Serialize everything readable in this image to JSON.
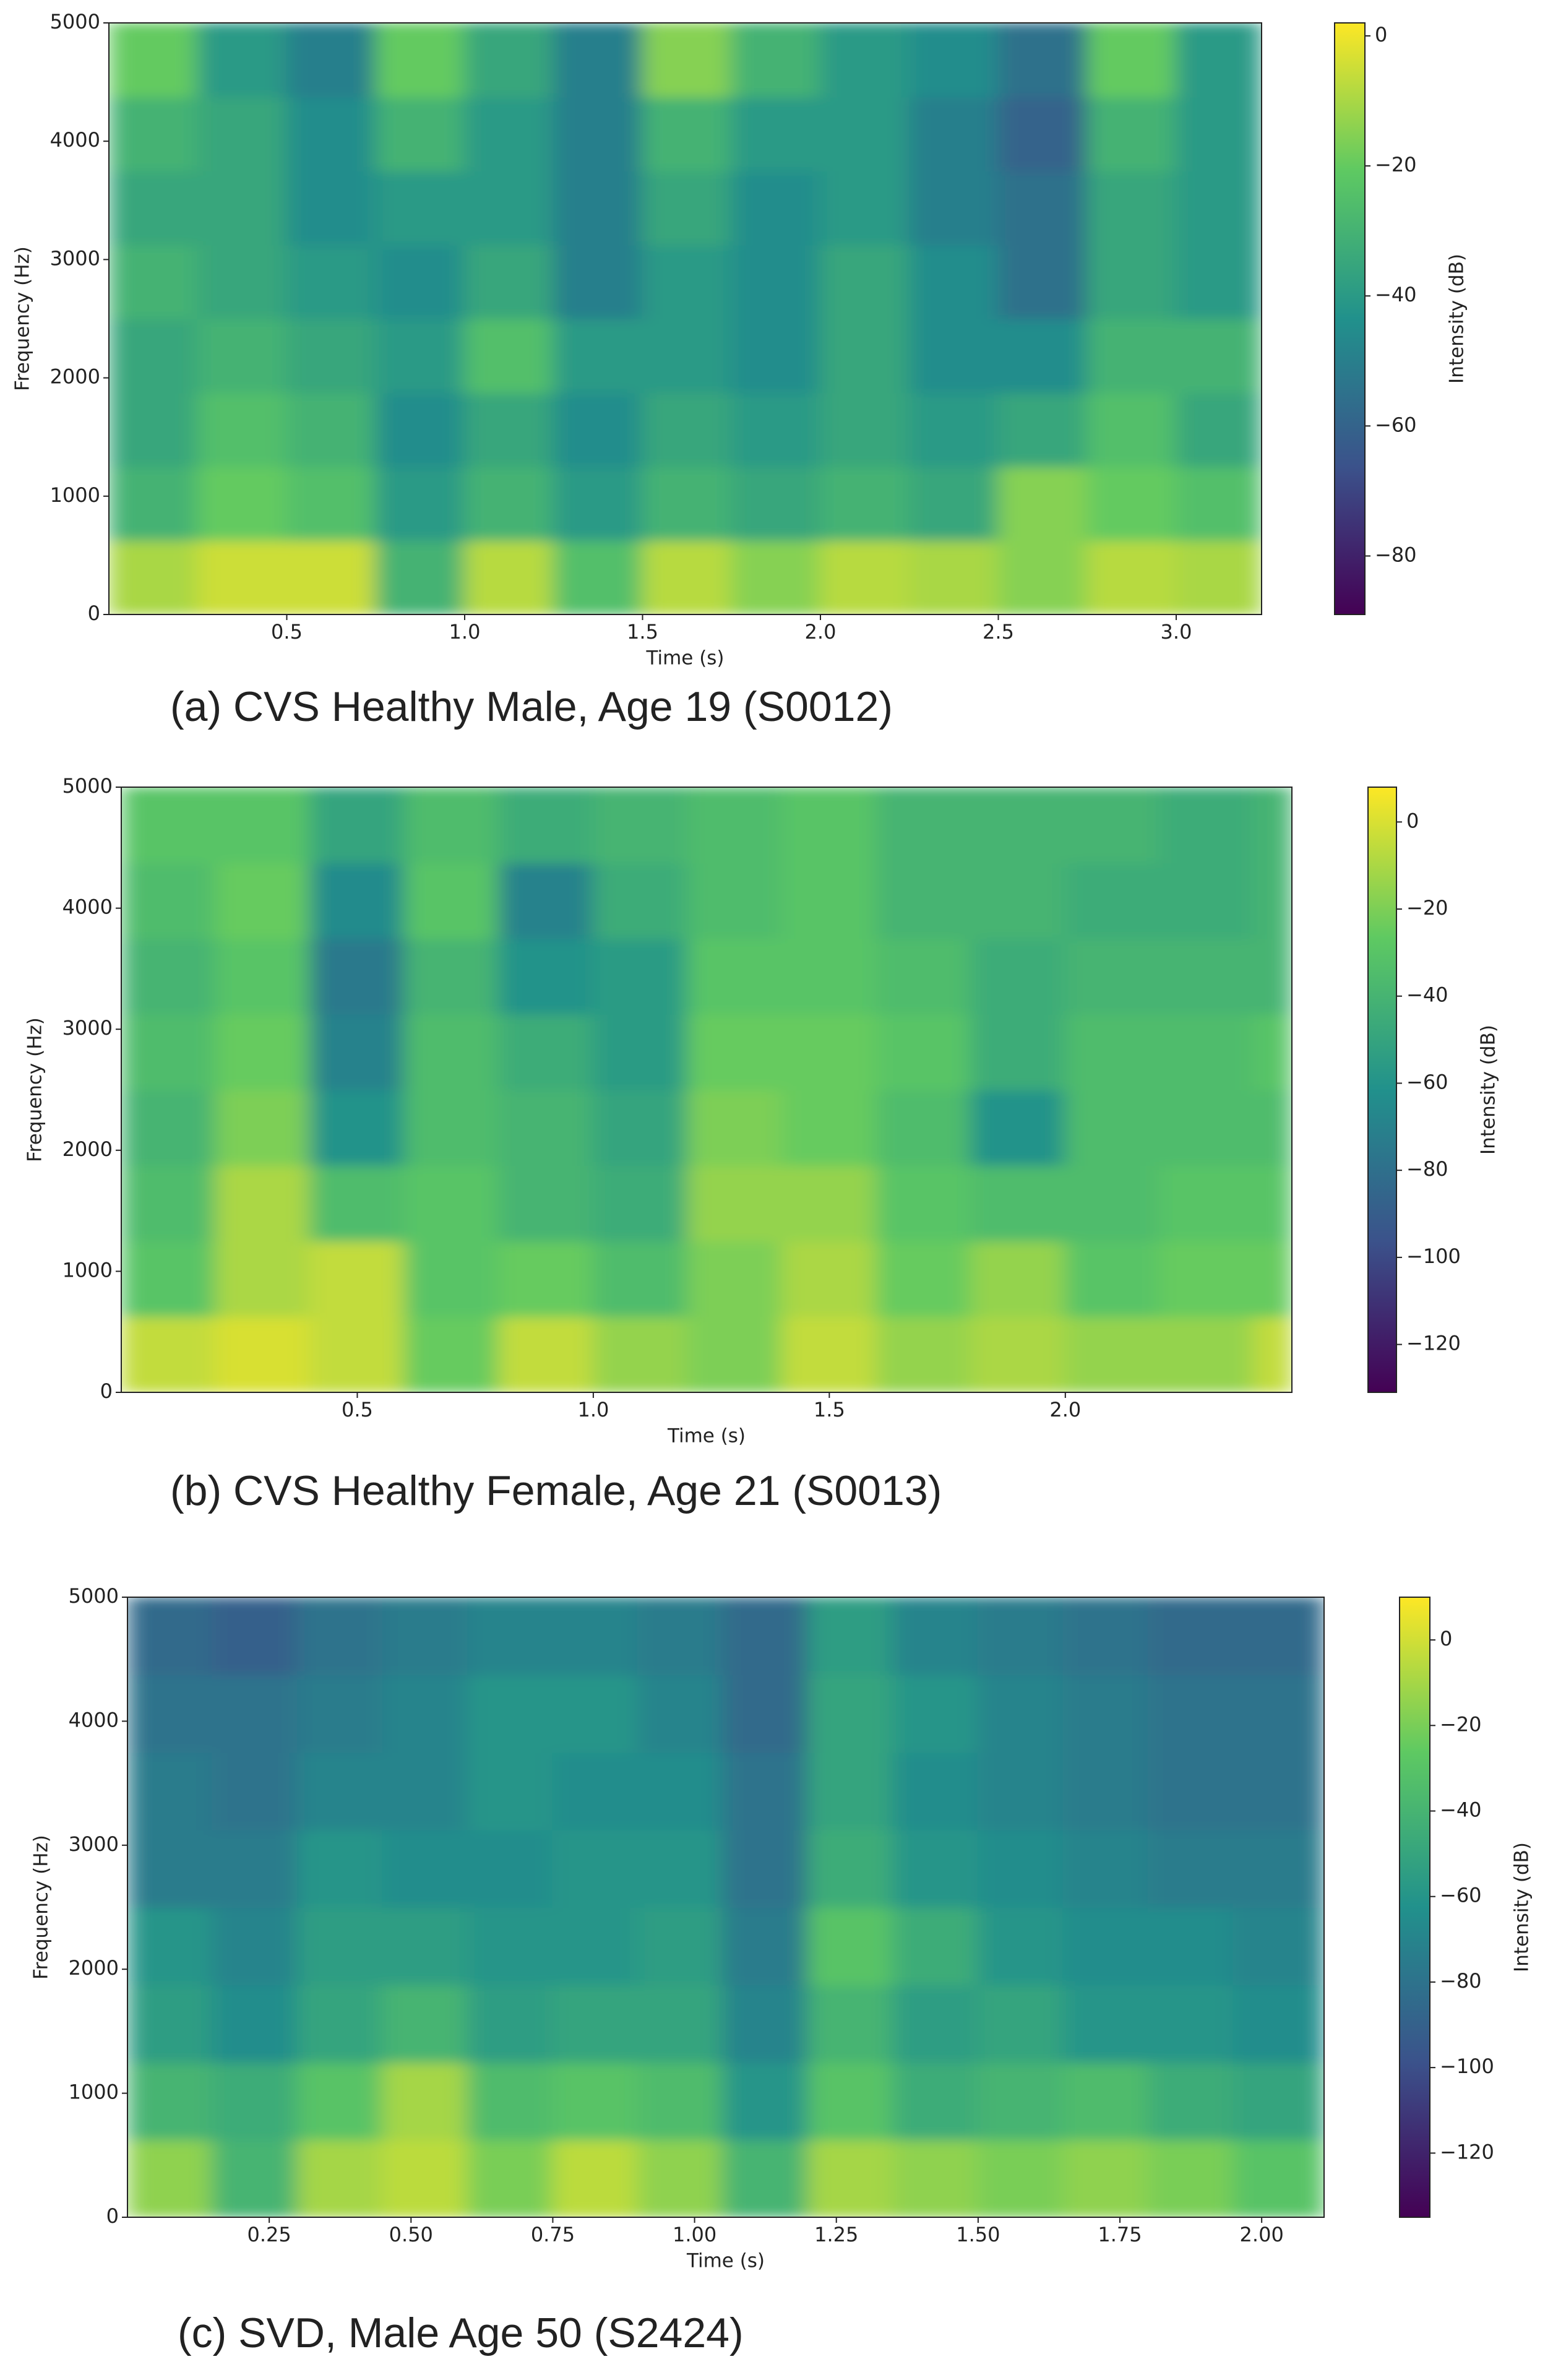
{
  "chart_data": [
    {
      "type": "heatmap",
      "caption": "(a) CVS Healthy Male, Age 19 (S0012)",
      "xlabel": "Time (s)",
      "ylabel": "Frequency (Hz)",
      "colorbar_label": "Intensity (dB)",
      "colormap": "viridis",
      "xlim": [
        0,
        3.24
      ],
      "ylim": [
        0,
        5000
      ],
      "xticks": [
        0.5,
        {
          "value": 1.0,
          "label": "1.0"
        },
        1.5,
        {
          "value": 2.0,
          "label": "2.0"
        },
        2.5,
        {
          "value": 3.0,
          "label": "3.0"
        }
      ],
      "yticks": [
        0,
        1000,
        2000,
        3000,
        4000,
        5000
      ],
      "clim": [
        -89,
        2
      ],
      "cticks": [
        0,
        {
          "value": -20,
          "label": "−20"
        },
        {
          "value": -40,
          "label": "−40"
        },
        {
          "value": -60,
          "label": "−60"
        },
        {
          "value": -80,
          "label": "−80"
        }
      ],
      "xbins": [
        0,
        0.25,
        0.5,
        0.75,
        1,
        1.25,
        1.5,
        1.75,
        2,
        2.25,
        2.5,
        2.75,
        3,
        3.24
      ],
      "ybins": [
        0,
        625,
        1250,
        1875,
        2500,
        3125,
        3750,
        4375,
        5000
      ],
      "values": [
        [
          -10,
          -5,
          -5,
          -30,
          -8,
          -25,
          -8,
          -15,
          -8,
          -10,
          -15,
          -8,
          -10
        ],
        [
          -30,
          -20,
          -25,
          -40,
          -30,
          -40,
          -30,
          -35,
          -30,
          -35,
          -15,
          -20,
          -25
        ],
        [
          -35,
          -25,
          -30,
          -45,
          -35,
          -45,
          -35,
          -40,
          -35,
          -40,
          -35,
          -25,
          -35
        ],
        [
          -35,
          -30,
          -35,
          -40,
          -25,
          -40,
          -40,
          -45,
          -35,
          -45,
          -45,
          -30,
          -30
        ],
        [
          -30,
          -35,
          -40,
          -45,
          -35,
          -50,
          -40,
          -45,
          -35,
          -45,
          -55,
          -35,
          -40
        ],
        [
          -35,
          -35,
          -45,
          -40,
          -40,
          -50,
          -35,
          -45,
          -40,
          -50,
          -55,
          -35,
          -40
        ],
        [
          -30,
          -35,
          -45,
          -30,
          -40,
          -50,
          -30,
          -40,
          -40,
          -50,
          -60,
          -30,
          -40
        ],
        [
          -20,
          -40,
          -50,
          -20,
          -35,
          -50,
          -15,
          -30,
          -40,
          -45,
          -55,
          -20,
          -40
        ]
      ]
    },
    {
      "type": "heatmap",
      "caption": "(b) CVS Healthy Female, Age 21 (S0013)",
      "xlabel": "Time (s)",
      "ylabel": "Frequency (Hz)",
      "colorbar_label": "Intensity (dB)",
      "colormap": "viridis",
      "xlim": [
        0,
        2.48
      ],
      "ylim": [
        0,
        5000
      ],
      "xticks": [
        0.5,
        {
          "value": 1.0,
          "label": "1.0"
        },
        1.5,
        {
          "value": 2.0,
          "label": "2.0"
        }
      ],
      "yticks": [
        0,
        1000,
        2000,
        3000,
        4000,
        5000
      ],
      "clim": [
        -131,
        8
      ],
      "cticks": [
        0,
        {
          "value": -20,
          "label": "−20"
        },
        {
          "value": -40,
          "label": "−40"
        },
        {
          "value": -60,
          "label": "−60"
        },
        {
          "value": -80,
          "label": "−80"
        },
        {
          "value": -100,
          "label": "−100"
        },
        {
          "value": -120,
          "label": "−120"
        }
      ],
      "xbins": [
        0,
        0.2,
        0.4,
        0.6,
        0.8,
        1,
        1.2,
        1.4,
        1.6,
        1.8,
        2,
        2.2,
        2.4,
        2.48
      ],
      "ybins": [
        0,
        625,
        1250,
        1875,
        2500,
        3125,
        3750,
        4375,
        5000
      ],
      "values": [
        [
          -5,
          0,
          -5,
          -25,
          -5,
          -15,
          -20,
          -5,
          -15,
          -10,
          -15,
          -15,
          -5
        ],
        [
          -30,
          -10,
          -5,
          -30,
          -25,
          -35,
          -20,
          -10,
          -25,
          -15,
          -30,
          -25,
          -25
        ],
        [
          -35,
          -10,
          -35,
          -30,
          -40,
          -45,
          -15,
          -15,
          -30,
          -35,
          -35,
          -30,
          -30
        ],
        [
          -40,
          -20,
          -60,
          -35,
          -40,
          -50,
          -20,
          -25,
          -35,
          -60,
          -35,
          -35,
          -35
        ],
        [
          -35,
          -25,
          -70,
          -35,
          -45,
          -55,
          -25,
          -25,
          -30,
          -45,
          -35,
          -35,
          -30
        ],
        [
          -40,
          -30,
          -75,
          -40,
          -60,
          -55,
          -30,
          -30,
          -35,
          -45,
          -40,
          -40,
          -40
        ],
        [
          -35,
          -25,
          -65,
          -30,
          -70,
          -45,
          -35,
          -30,
          -40,
          -40,
          -45,
          -45,
          -40
        ],
        [
          -30,
          -30,
          -50,
          -35,
          -45,
          -40,
          -35,
          -30,
          -40,
          -40,
          -40,
          -45,
          -40
        ]
      ]
    },
    {
      "type": "heatmap",
      "caption": "(c) SVD, Male Age 50 (S2424)",
      "xlabel": "Time (s)",
      "ylabel": "Frequency (Hz)",
      "colorbar_label": "Intensity (dB)",
      "colormap": "viridis",
      "xlim": [
        0,
        2.11
      ],
      "ylim": [
        0,
        5000
      ],
      "xticks": [
        0.25,
        {
          "value": 0.5,
          "label": "0.50"
        },
        0.75,
        {
          "value": 1.0,
          "label": "1.00"
        },
        1.25,
        {
          "value": 1.5,
          "label": "1.50"
        },
        1.75,
        {
          "value": 2.0,
          "label": "2.00"
        }
      ],
      "yticks": [
        0,
        1000,
        2000,
        3000,
        4000,
        5000
      ],
      "clim": [
        -135,
        10
      ],
      "cticks": [
        0,
        {
          "value": -20,
          "label": "−20"
        },
        {
          "value": -40,
          "label": "−40"
        },
        {
          "value": -60,
          "label": "−60"
        },
        {
          "value": -80,
          "label": "−80"
        },
        {
          "value": -100,
          "label": "−100"
        },
        {
          "value": -120,
          "label": "−120"
        }
      ],
      "xbins": [
        0,
        0.15,
        0.3,
        0.45,
        0.6,
        0.75,
        0.9,
        1.05,
        1.2,
        1.35,
        1.5,
        1.65,
        1.8,
        1.95,
        2.11
      ],
      "ybins": [
        0,
        625,
        1250,
        1875,
        2500,
        3125,
        3750,
        4375,
        5000
      ],
      "values": [
        [
          -15,
          -40,
          -10,
          -5,
          -20,
          -5,
          -15,
          -40,
          -10,
          -15,
          -20,
          -15,
          -20,
          -30
        ],
        [
          -40,
          -45,
          -30,
          -10,
          -35,
          -30,
          -35,
          -60,
          -30,
          -45,
          -40,
          -35,
          -45,
          -50
        ],
        [
          -55,
          -65,
          -50,
          -40,
          -55,
          -50,
          -50,
          -70,
          -40,
          -55,
          -50,
          -60,
          -60,
          -65
        ],
        [
          -60,
          -70,
          -55,
          -55,
          -60,
          -60,
          -55,
          -75,
          -30,
          -45,
          -60,
          -65,
          -65,
          -70
        ],
        [
          -75,
          -75,
          -60,
          -65,
          -65,
          -60,
          -60,
          -80,
          -45,
          -60,
          -65,
          -70,
          -75,
          -75
        ],
        [
          -75,
          -80,
          -70,
          -70,
          -60,
          -65,
          -65,
          -80,
          -50,
          -65,
          -70,
          -75,
          -80,
          -80
        ],
        [
          -80,
          -80,
          -75,
          -70,
          -60,
          -60,
          -70,
          -85,
          -50,
          -60,
          -70,
          -75,
          -80,
          -80
        ],
        [
          -85,
          -90,
          -80,
          -75,
          -70,
          -70,
          -75,
          -85,
          -55,
          -70,
          -75,
          -80,
          -85,
          -85
        ]
      ]
    }
  ]
}
